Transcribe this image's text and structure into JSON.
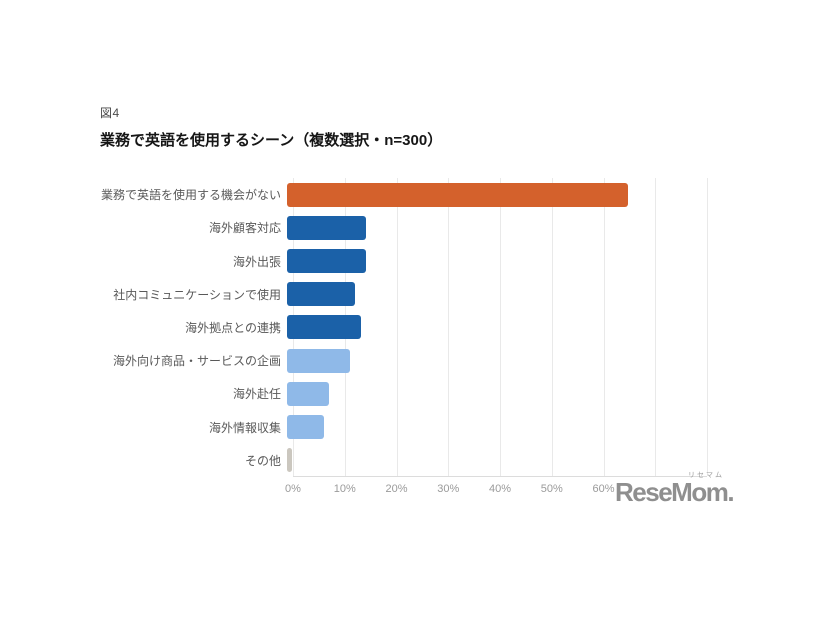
{
  "page": {
    "figure_label": "図4",
    "title": "業務で英語を使用するシーン（複数選択・n=300）"
  },
  "watermark": {
    "ruby": "リセマム",
    "text": "ReseMom."
  },
  "chart_data": {
    "type": "bar",
    "orientation": "horizontal",
    "title": "業務で英語を使用するシーン（複数選択・n=300）",
    "sample_note": "複数選択・n=300",
    "categories": [
      "業務で英語を使用する機会がない",
      "海外顧客対応",
      "海外出張",
      "社内コミュニケーションで使用",
      "海外拠点との連携",
      "海外向け商品・サービスの企画",
      "海外赴任",
      "海外情報収集",
      "その他"
    ],
    "values": [
      65,
      15,
      15,
      13,
      14,
      12,
      8,
      7,
      1
    ],
    "unit": "%",
    "bar_colors": [
      "#D4612C",
      "#1B61A8",
      "#1B61A8",
      "#1B61A8",
      "#1B61A8",
      "#8FB9E8",
      "#8FB9E8",
      "#8FB9E8",
      "#CBC7BF"
    ],
    "xlim": [
      0,
      80
    ],
    "gridline_step": 10,
    "x_ticks": [
      0,
      10,
      20,
      30,
      40,
      50,
      60
    ],
    "x_tick_labels": [
      "0%",
      "10%",
      "20%",
      "30%",
      "40%",
      "50%",
      "60%"
    ],
    "grid": true,
    "legend": false,
    "ylabel": "",
    "xlabel": "",
    "colors": {
      "grid": "#e9e9e9",
      "axis_line": "#dcdcdc",
      "category_label": "#595959",
      "tick_label": "#9a9a9a",
      "title_text": "#161616",
      "watermark": "#8f8f8f"
    }
  }
}
